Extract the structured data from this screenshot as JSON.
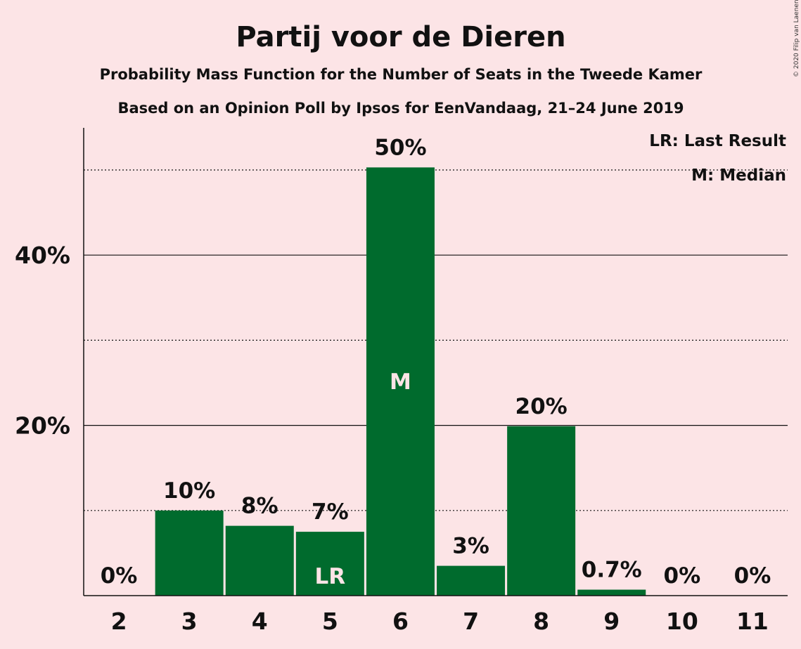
{
  "chart_data": {
    "type": "bar",
    "title": "Partij voor de Dieren",
    "subtitle": "Probability Mass Function for the Number of Seats in the Tweede Kamer",
    "subtitle2": "Based on an Opinion Poll by Ipsos for EenVandaag, 21–24 June 2019",
    "categories": [
      "2",
      "3",
      "4",
      "5",
      "6",
      "7",
      "8",
      "9",
      "10",
      "11"
    ],
    "values": [
      0,
      10,
      8.2,
      7.5,
      50.3,
      3.5,
      19.9,
      0.7,
      0,
      0
    ],
    "labels": [
      "0%",
      "10%",
      "8%",
      "7%",
      "50%",
      "3%",
      "20%",
      "0.7%",
      "0%",
      "0%"
    ],
    "markers": [
      {
        "category": "5",
        "text": "LR"
      },
      {
        "category": "6",
        "text": "M"
      }
    ],
    "legend": [
      "LR: Last Result",
      "M: Median"
    ],
    "legend_position": "top-right",
    "yticks": [
      {
        "value": 20,
        "label": "20%"
      },
      {
        "value": 40,
        "label": "40%"
      }
    ],
    "minor_gridlines": [
      10,
      30,
      50
    ],
    "ylim": [
      0,
      55
    ],
    "bar_color": "#006b2d",
    "background_color": "#fce4e6",
    "copyright": "© 2020 Filip van Laenen"
  }
}
